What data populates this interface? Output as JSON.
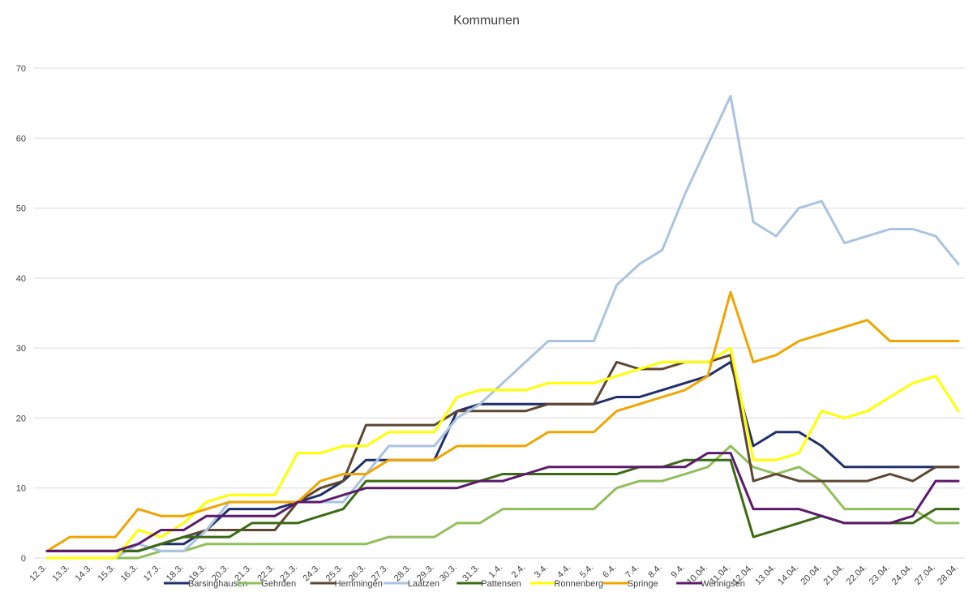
{
  "chart_data": {
    "type": "line",
    "title": "Kommunen",
    "xlabel": "",
    "ylabel": "",
    "ylim": [
      0,
      70
    ],
    "yticks": [
      0,
      10,
      20,
      30,
      40,
      50,
      60,
      70
    ],
    "grid": true,
    "legend_position": "bottom",
    "categories": [
      "12.3.",
      "13.3.",
      "14.3.",
      "15.3.",
      "16.3.",
      "17.3.",
      "18.3.",
      "19.3.",
      "20.3.",
      "21.3.",
      "22.3.",
      "23.3.",
      "24.3.",
      "25.3.",
      "26.3.",
      "27.3.",
      "28.3.",
      "29.3.",
      "30.3.",
      "31.3.",
      "1.4.",
      "2.4.",
      "3.4.",
      "4.4.",
      "5.4.",
      "6.4.",
      "7.4.",
      "8.4.",
      "9.4.",
      "10.04.",
      "11.04.",
      "12.04.",
      "13.04.",
      "14.04.",
      "20.04.",
      "21.04.",
      "22.04.",
      "23.04.",
      "24.04.",
      "27.04.",
      "28.04."
    ],
    "series": [
      {
        "name": "Barsinghausen",
        "color": "#1f2f6b",
        "values": [
          1,
          1,
          1,
          1,
          1,
          2,
          2,
          4,
          7,
          7,
          7,
          8,
          9,
          11,
          14,
          14,
          14,
          14,
          21,
          22,
          22,
          22,
          22,
          22,
          22,
          23,
          23,
          24,
          25,
          26,
          28,
          16,
          18,
          18,
          16,
          13,
          13,
          13,
          13,
          13,
          13
        ]
      },
      {
        "name": "Gehrden",
        "color": "#8fbf59",
        "values": [
          0,
          0,
          0,
          0,
          0,
          1,
          1,
          2,
          2,
          2,
          2,
          2,
          2,
          2,
          2,
          3,
          3,
          3,
          5,
          5,
          7,
          7,
          7,
          7,
          7,
          10,
          11,
          11,
          12,
          13,
          16,
          13,
          12,
          13,
          11,
          7,
          7,
          7,
          7,
          5,
          5
        ]
      },
      {
        "name": "Hemmingen",
        "color": "#5e4631",
        "values": [
          1,
          1,
          1,
          1,
          1,
          2,
          3,
          4,
          4,
          4,
          4,
          8,
          10,
          11,
          19,
          19,
          19,
          19,
          21,
          21,
          21,
          21,
          22,
          22,
          22,
          28,
          27,
          27,
          28,
          28,
          29,
          11,
          12,
          11,
          11,
          11,
          11,
          12,
          11,
          13,
          13
        ]
      },
      {
        "name": "Laatzen",
        "color": "#aac3e0",
        "values": [
          0,
          0,
          0,
          0,
          2,
          1,
          1,
          4,
          8,
          8,
          8,
          8,
          8,
          8,
          12,
          16,
          16,
          16,
          20,
          22,
          25,
          28,
          31,
          31,
          31,
          39,
          42,
          44,
          52,
          59,
          66,
          48,
          46,
          50,
          51,
          45,
          46,
          47,
          47,
          46,
          42
        ]
      },
      {
        "name": "Pattensen",
        "color": "#3a6b12",
        "values": [
          1,
          1,
          1,
          1,
          1,
          2,
          3,
          3,
          3,
          5,
          5,
          5,
          6,
          7,
          11,
          11,
          11,
          11,
          11,
          11,
          12,
          12,
          12,
          12,
          12,
          12,
          13,
          13,
          14,
          14,
          14,
          3,
          4,
          5,
          6,
          5,
          5,
          5,
          5,
          7,
          7
        ]
      },
      {
        "name": "Ronnenberg",
        "color": "#ffff00",
        "values": [
          0,
          0,
          0,
          0,
          4,
          3,
          5,
          8,
          9,
          9,
          9,
          15,
          15,
          16,
          16,
          18,
          18,
          18,
          23,
          24,
          24,
          24,
          25,
          25,
          25,
          26,
          27,
          28,
          28,
          28,
          30,
          14,
          14,
          15,
          21,
          20,
          21,
          23,
          25,
          26,
          21
        ]
      },
      {
        "name": "Springe",
        "color": "#f0a500",
        "values": [
          1,
          3,
          3,
          3,
          7,
          6,
          6,
          7,
          8,
          8,
          8,
          8,
          11,
          12,
          12,
          14,
          14,
          14,
          16,
          16,
          16,
          16,
          18,
          18,
          18,
          21,
          22,
          23,
          24,
          26,
          38,
          28,
          29,
          31,
          32,
          33,
          34,
          31,
          31,
          31,
          31
        ]
      },
      {
        "name": "Wennigsen",
        "color": "#5c1a6b",
        "values": [
          1,
          1,
          1,
          1,
          2,
          4,
          4,
          6,
          6,
          6,
          6,
          8,
          8,
          9,
          10,
          10,
          10,
          10,
          10,
          11,
          11,
          12,
          13,
          13,
          13,
          13,
          13,
          13,
          13,
          15,
          15,
          7,
          7,
          7,
          6,
          5,
          5,
          5,
          6,
          11,
          11
        ]
      }
    ]
  }
}
